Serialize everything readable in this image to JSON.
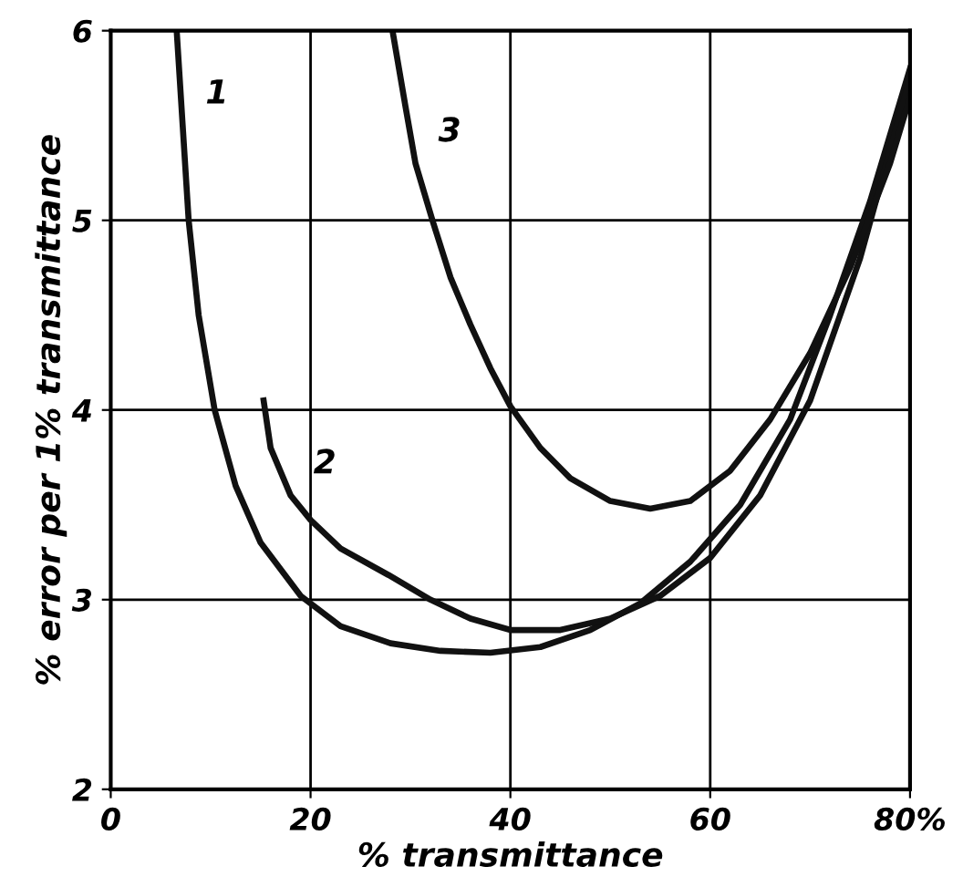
{
  "chart_data": {
    "type": "line",
    "xlabel": "% transmittance",
    "ylabel": "% error per 1% transmittance",
    "series": [
      {
        "color": "#111111",
        "x": [
          6.6,
          7.2,
          7.8,
          8.8,
          10.4,
          12.5,
          15,
          19,
          23,
          28,
          33,
          38,
          43,
          48,
          53,
          58,
          63,
          68,
          72,
          76,
          80
        ],
        "values": [
          6.0,
          5.5,
          5.0,
          4.5,
          4.0,
          3.6,
          3.3,
          3.02,
          2.86,
          2.77,
          2.73,
          2.72,
          2.75,
          2.84,
          2.98,
          3.2,
          3.5,
          3.95,
          4.5,
          5.1,
          5.8
        ]
      },
      {
        "color": "#111111",
        "x": [
          15.3,
          16,
          18,
          20,
          23,
          27.8,
          32,
          36,
          40,
          45,
          50,
          55,
          60,
          65,
          70,
          75,
          80
        ],
        "values": [
          4.05,
          3.8,
          3.55,
          3.42,
          3.27,
          3.13,
          3.0,
          2.9,
          2.84,
          2.84,
          2.9,
          3.02,
          3.22,
          3.55,
          4.05,
          4.8,
          5.75
        ]
      },
      {
        "color": "#111111",
        "x": [
          28.2,
          29.5,
          30.5,
          32.2,
          34,
          36,
          38,
          40,
          43,
          46,
          50,
          54,
          58,
          62,
          66,
          70,
          74,
          78,
          80
        ],
        "values": [
          6.0,
          5.6,
          5.3,
          5.0,
          4.7,
          4.45,
          4.22,
          4.02,
          3.8,
          3.64,
          3.52,
          3.48,
          3.52,
          3.68,
          3.95,
          4.3,
          4.75,
          5.3,
          5.65
        ]
      }
    ],
    "annotations": [
      {
        "text": "1",
        "x": 7.2,
        "y": 5.5
      },
      {
        "text": "2",
        "x": 18,
        "y": 3.55
      },
      {
        "text": "3",
        "x": 30.5,
        "y": 5.3
      }
    ],
    "xlim": [
      0,
      80
    ],
    "ylim": [
      2,
      6
    ],
    "xticks": [
      0,
      20,
      40,
      60,
      {
        "value": 80,
        "label": "80%"
      }
    ],
    "yticks": [
      2,
      3,
      4,
      5,
      6
    ],
    "grid": true,
    "marker": "none",
    "line_style": "solid"
  }
}
